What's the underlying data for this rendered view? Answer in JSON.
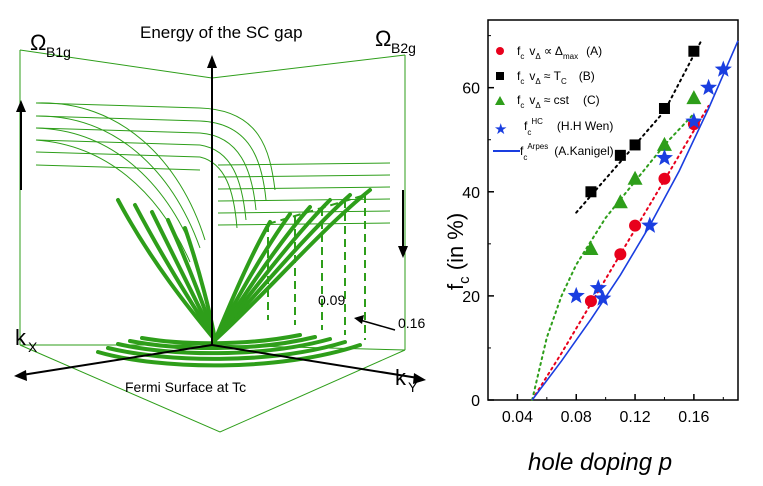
{
  "left_panel": {
    "title": "Energy of the SC gap",
    "omega_b1g": "Ω",
    "omega_b1g_sub": "B1g",
    "omega_b2g": "Ω",
    "omega_b2g_sub": "B2g",
    "kx": "k",
    "kx_sub": "X",
    "ky": "k",
    "ky_sub": "Y",
    "fermi_label": "Fermi Surface at Tc",
    "doping_low": "0.09",
    "doping_high": "0.16",
    "line_color": "#2e9e1a"
  },
  "chart_data": {
    "type": "scatter",
    "title": "",
    "xlabel": "hole doping p",
    "ylabel": "f",
    "ylabel_sub": "c",
    "ylabel_rest": " (in %)",
    "xlim": [
      0.02,
      0.19
    ],
    "ylim": [
      0,
      73
    ],
    "xticks": [
      0.04,
      0.08,
      0.12,
      0.16
    ],
    "xtick_labels": [
      "0.04",
      "0.08",
      "0.12",
      "0.16"
    ],
    "yticks": [
      0,
      20,
      40,
      60
    ],
    "ytick_labels": [
      "0",
      "20",
      "40",
      "60"
    ],
    "legend_position": "top-left",
    "series": [
      {
        "name": "A",
        "legend": {
          "f": "f",
          "c": "c",
          "v": "v",
          "delta": "Δ",
          "rel": "∝ Δ",
          "sub": "max",
          "tag": "(A)"
        },
        "marker": "circle",
        "color": "#e8001c",
        "x": [
          0.09,
          0.11,
          0.12,
          0.14,
          0.16
        ],
        "y": [
          19,
          28,
          33.5,
          42.5,
          53
        ],
        "fit_style": "dotted",
        "fit_x": [
          0.05,
          0.07,
          0.09,
          0.11,
          0.13,
          0.15,
          0.17
        ],
        "fit_y": [
          0,
          9,
          18.5,
          28,
          37.5,
          47,
          56.5
        ]
      },
      {
        "name": "B",
        "legend": {
          "f": "f",
          "c": "c",
          "v": "v",
          "delta": "Δ",
          "rel": "≈ T",
          "sub": "C",
          "tag": "(B)"
        },
        "marker": "square",
        "color": "#000000",
        "x": [
          0.09,
          0.11,
          0.12,
          0.14,
          0.16
        ],
        "y": [
          40,
          47,
          49,
          56,
          67
        ],
        "fit_style": "dotted",
        "fit_x": [
          0.08,
          0.1,
          0.12,
          0.14,
          0.165
        ],
        "fit_y": [
          36,
          42.5,
          49,
          55.5,
          69
        ]
      },
      {
        "name": "C",
        "legend": {
          "f": "f",
          "c": "c",
          "v": "v",
          "delta": "Δ",
          "rel": "≈ cst",
          "sub": "",
          "tag": "(C)"
        },
        "marker": "triangle",
        "color": "#2e9e1a",
        "x": [
          0.09,
          0.11,
          0.12,
          0.14,
          0.16
        ],
        "y": [
          29,
          38,
          42.5,
          49,
          58
        ],
        "fit_style": "dotted",
        "fit_x": [
          0.05,
          0.06,
          0.07,
          0.08,
          0.1,
          0.12,
          0.14,
          0.16
        ],
        "fit_y": [
          0,
          12,
          20,
          26,
          35,
          42,
          49,
          55
        ]
      },
      {
        "name": "H.H Wen",
        "legend": {
          "f": "f",
          "c": "c",
          "sup": "HC",
          "tag": "(H.H Wen)"
        },
        "marker": "star",
        "color": "#1a3ee0",
        "x": [
          0.08,
          0.095,
          0.098,
          0.13,
          0.14,
          0.16,
          0.17,
          0.18
        ],
        "y": [
          20,
          21.5,
          19.5,
          33.5,
          46.5,
          53.5,
          60,
          63.5
        ]
      },
      {
        "name": "A.Kanigel",
        "legend": {
          "f": "f",
          "c": "c",
          "sup": "Arpes",
          "tag": "(A.Kanigel)"
        },
        "marker": "line",
        "color": "#1a3ee0",
        "fit_style": "solid",
        "fit_x": [
          0.05,
          0.07,
          0.09,
          0.11,
          0.13,
          0.15,
          0.17,
          0.19
        ],
        "fit_y": [
          0,
          7.5,
          15.5,
          24,
          33.5,
          44,
          56,
          69
        ]
      }
    ]
  }
}
